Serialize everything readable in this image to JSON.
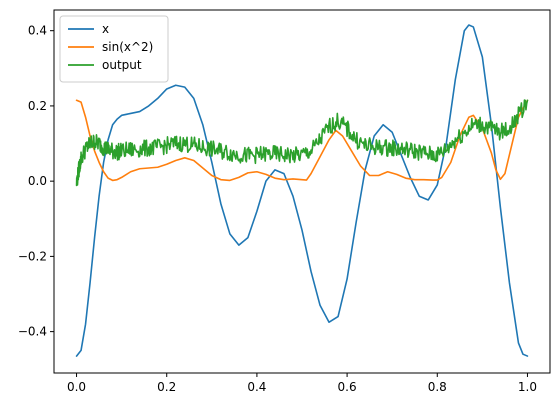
{
  "chart_data": {
    "type": "line",
    "title": "",
    "xlabel": "",
    "ylabel": "",
    "xlim": [
      -0.05,
      1.05
    ],
    "ylim": [
      -0.51,
      0.455
    ],
    "x_ticks": [
      0.0,
      0.2,
      0.4,
      0.6,
      0.8,
      1.0
    ],
    "x_tick_labels": [
      "0.0",
      "0.2",
      "0.4",
      "0.6",
      "0.8",
      "1.0"
    ],
    "y_ticks": [
      -0.4,
      -0.2,
      0.0,
      0.2,
      0.4
    ],
    "y_tick_labels": [
      "−0.4",
      "−0.2",
      "0.0",
      "0.2",
      "0.4"
    ],
    "grid": false,
    "legend_position": "top-left",
    "series": [
      {
        "name": "x",
        "color": "#1f77b4",
        "points": [
          [
            0.0,
            -0.465
          ],
          [
            0.01,
            -0.45
          ],
          [
            0.02,
            -0.38
          ],
          [
            0.03,
            -0.27
          ],
          [
            0.04,
            -0.15
          ],
          [
            0.05,
            -0.04
          ],
          [
            0.06,
            0.05
          ],
          [
            0.07,
            0.11
          ],
          [
            0.08,
            0.15
          ],
          [
            0.09,
            0.165
          ],
          [
            0.1,
            0.175
          ],
          [
            0.12,
            0.18
          ],
          [
            0.14,
            0.185
          ],
          [
            0.16,
            0.2
          ],
          [
            0.18,
            0.22
          ],
          [
            0.2,
            0.245
          ],
          [
            0.22,
            0.255
          ],
          [
            0.24,
            0.25
          ],
          [
            0.26,
            0.22
          ],
          [
            0.28,
            0.15
          ],
          [
            0.3,
            0.05
          ],
          [
            0.32,
            -0.06
          ],
          [
            0.34,
            -0.14
          ],
          [
            0.36,
            -0.17
          ],
          [
            0.38,
            -0.15
          ],
          [
            0.4,
            -0.08
          ],
          [
            0.42,
            0.0
          ],
          [
            0.44,
            0.03
          ],
          [
            0.46,
            0.02
          ],
          [
            0.48,
            -0.04
          ],
          [
            0.5,
            -0.13
          ],
          [
            0.52,
            -0.24
          ],
          [
            0.54,
            -0.33
          ],
          [
            0.56,
            -0.375
          ],
          [
            0.58,
            -0.36
          ],
          [
            0.6,
            -0.26
          ],
          [
            0.62,
            -0.11
          ],
          [
            0.64,
            0.03
          ],
          [
            0.66,
            0.12
          ],
          [
            0.68,
            0.15
          ],
          [
            0.7,
            0.13
          ],
          [
            0.72,
            0.07
          ],
          [
            0.74,
            0.01
          ],
          [
            0.76,
            -0.04
          ],
          [
            0.78,
            -0.05
          ],
          [
            0.8,
            -0.01
          ],
          [
            0.82,
            0.1
          ],
          [
            0.84,
            0.27
          ],
          [
            0.86,
            0.4
          ],
          [
            0.87,
            0.415
          ],
          [
            0.88,
            0.41
          ],
          [
            0.9,
            0.33
          ],
          [
            0.92,
            0.15
          ],
          [
            0.94,
            -0.07
          ],
          [
            0.96,
            -0.27
          ],
          [
            0.98,
            -0.43
          ],
          [
            0.99,
            -0.46
          ],
          [
            1.0,
            -0.465
          ]
        ]
      },
      {
        "name": "sin(x^2)",
        "color": "#ff7f0e",
        "points": [
          [
            0.0,
            0.215
          ],
          [
            0.01,
            0.21
          ],
          [
            0.02,
            0.17
          ],
          [
            0.03,
            0.12
          ],
          [
            0.04,
            0.08
          ],
          [
            0.05,
            0.05
          ],
          [
            0.06,
            0.025
          ],
          [
            0.07,
            0.008
          ],
          [
            0.08,
            0.002
          ],
          [
            0.09,
            0.004
          ],
          [
            0.1,
            0.01
          ],
          [
            0.12,
            0.025
          ],
          [
            0.14,
            0.033
          ],
          [
            0.16,
            0.035
          ],
          [
            0.18,
            0.037
          ],
          [
            0.2,
            0.045
          ],
          [
            0.22,
            0.055
          ],
          [
            0.24,
            0.062
          ],
          [
            0.26,
            0.055
          ],
          [
            0.28,
            0.035
          ],
          [
            0.3,
            0.015
          ],
          [
            0.32,
            0.004
          ],
          [
            0.34,
            0.002
          ],
          [
            0.36,
            0.01
          ],
          [
            0.38,
            0.022
          ],
          [
            0.4,
            0.025
          ],
          [
            0.42,
            0.018
          ],
          [
            0.44,
            0.008
          ],
          [
            0.46,
            0.004
          ],
          [
            0.48,
            0.006
          ],
          [
            0.5,
            0.004
          ],
          [
            0.51,
            0.003
          ],
          [
            0.52,
            0.02
          ],
          [
            0.54,
            0.065
          ],
          [
            0.56,
            0.11
          ],
          [
            0.575,
            0.135
          ],
          [
            0.59,
            0.12
          ],
          [
            0.61,
            0.08
          ],
          [
            0.63,
            0.04
          ],
          [
            0.65,
            0.015
          ],
          [
            0.67,
            0.015
          ],
          [
            0.69,
            0.025
          ],
          [
            0.71,
            0.018
          ],
          [
            0.73,
            0.008
          ],
          [
            0.75,
            0.004
          ],
          [
            0.77,
            0.004
          ],
          [
            0.79,
            0.003
          ],
          [
            0.8,
            0.003
          ],
          [
            0.81,
            0.01
          ],
          [
            0.83,
            0.05
          ],
          [
            0.85,
            0.12
          ],
          [
            0.87,
            0.17
          ],
          [
            0.88,
            0.175
          ],
          [
            0.9,
            0.14
          ],
          [
            0.92,
            0.075
          ],
          [
            0.93,
            0.03
          ],
          [
            0.94,
            0.005
          ],
          [
            0.95,
            0.02
          ],
          [
            0.96,
            0.07
          ],
          [
            0.98,
            0.17
          ],
          [
            1.0,
            0.215
          ]
        ]
      },
      {
        "name": "output",
        "color": "#2ca02c",
        "points": [
          [
            0.0,
            -0.005
          ],
          [
            0.005,
            0.03
          ],
          [
            0.01,
            0.06
          ],
          [
            0.02,
            0.085
          ],
          [
            0.03,
            0.1
          ],
          [
            0.04,
            0.105
          ],
          [
            0.05,
            0.1
          ],
          [
            0.06,
            0.09
          ],
          [
            0.07,
            0.085
          ],
          [
            0.08,
            0.08
          ],
          [
            0.09,
            0.078
          ],
          [
            0.1,
            0.08
          ],
          [
            0.12,
            0.083
          ],
          [
            0.14,
            0.085
          ],
          [
            0.16,
            0.088
          ],
          [
            0.18,
            0.09
          ],
          [
            0.2,
            0.095
          ],
          [
            0.22,
            0.1
          ],
          [
            0.24,
            0.1
          ],
          [
            0.26,
            0.095
          ],
          [
            0.28,
            0.09
          ],
          [
            0.3,
            0.085
          ],
          [
            0.32,
            0.08
          ],
          [
            0.34,
            0.075
          ],
          [
            0.36,
            0.07
          ],
          [
            0.38,
            0.068
          ],
          [
            0.4,
            0.07
          ],
          [
            0.42,
            0.072
          ],
          [
            0.44,
            0.072
          ],
          [
            0.46,
            0.07
          ],
          [
            0.48,
            0.068
          ],
          [
            0.5,
            0.07
          ],
          [
            0.52,
            0.08
          ],
          [
            0.54,
            0.11
          ],
          [
            0.56,
            0.145
          ],
          [
            0.58,
            0.16
          ],
          [
            0.6,
            0.14
          ],
          [
            0.62,
            0.11
          ],
          [
            0.64,
            0.095
          ],
          [
            0.66,
            0.09
          ],
          [
            0.68,
            0.09
          ],
          [
            0.7,
            0.088
          ],
          [
            0.72,
            0.085
          ],
          [
            0.74,
            0.082
          ],
          [
            0.76,
            0.078
          ],
          [
            0.78,
            0.072
          ],
          [
            0.8,
            0.07
          ],
          [
            0.82,
            0.085
          ],
          [
            0.84,
            0.11
          ],
          [
            0.86,
            0.13
          ],
          [
            0.88,
            0.15
          ],
          [
            0.9,
            0.15
          ],
          [
            0.92,
            0.14
          ],
          [
            0.94,
            0.13
          ],
          [
            0.96,
            0.14
          ],
          [
            0.98,
            0.175
          ],
          [
            1.0,
            0.215
          ]
        ]
      }
    ]
  }
}
